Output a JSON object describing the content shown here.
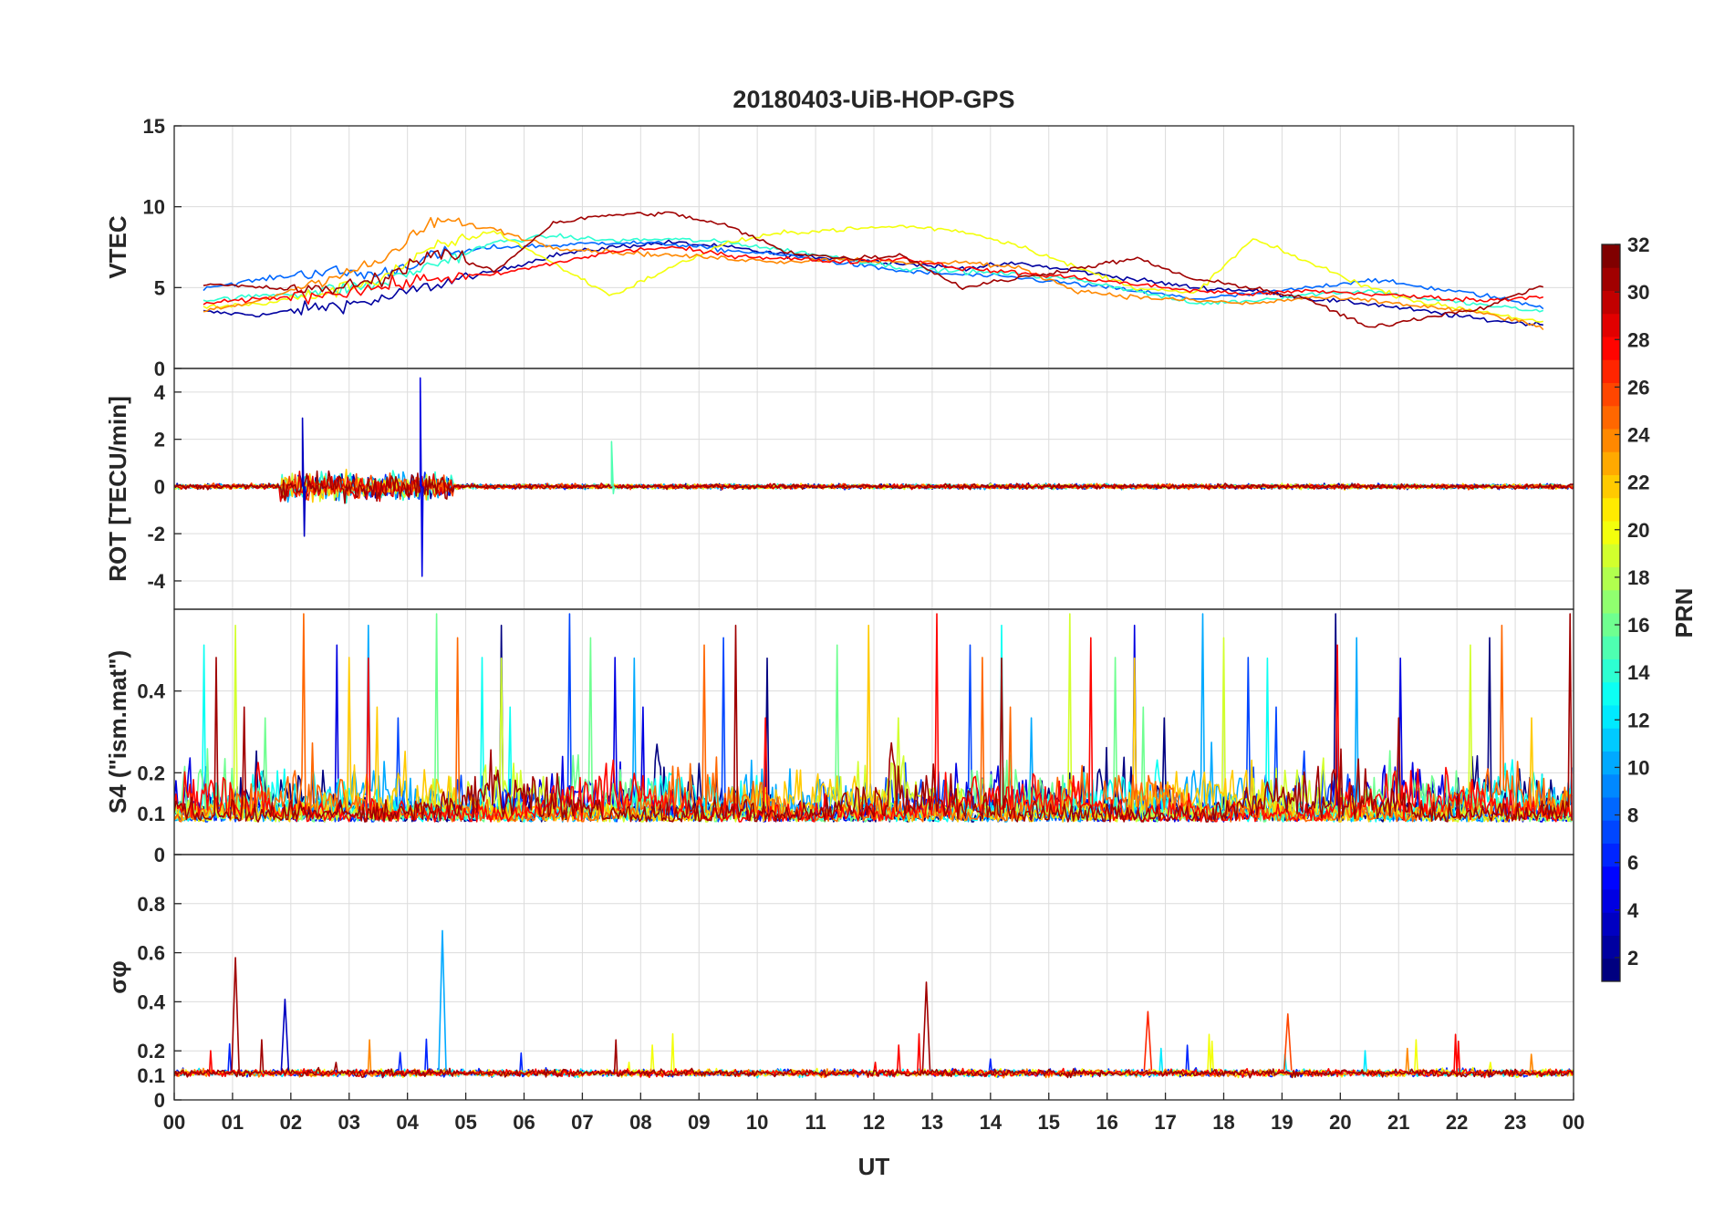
{
  "chart_data": {
    "type": "line",
    "title": "20180403-UiB-HOP-GPS",
    "xlabel": "UT",
    "x_ticks": [
      "00",
      "01",
      "02",
      "03",
      "04",
      "05",
      "06",
      "07",
      "08",
      "09",
      "10",
      "11",
      "12",
      "13",
      "14",
      "15",
      "16",
      "17",
      "18",
      "19",
      "20",
      "21",
      "22",
      "23",
      "00"
    ],
    "xlim_hours": [
      0,
      24
    ],
    "colorbar": {
      "label": "PRN",
      "range": [
        1,
        32
      ],
      "ticks": [
        "2",
        "4",
        "6",
        "8",
        "10",
        "12",
        "14",
        "16",
        "18",
        "20",
        "22",
        "24",
        "26",
        "28",
        "30",
        "32"
      ],
      "colormap": "jet"
    },
    "panels": [
      {
        "ylabel": "VTEC",
        "ylim": [
          0,
          15
        ],
        "yticks": [
          "0",
          "5",
          "10",
          "15"
        ],
        "series": [
          {
            "name": "PRN 2",
            "hours": [
              0.5,
              1.5,
              2.5,
              3.5,
              4.5,
              5.5,
              6.5,
              7.5,
              8.5,
              9.5,
              10.5,
              11.5,
              12.5,
              13.5,
              14.5,
              15.5,
              16.5,
              17.5,
              18.5,
              19.5,
              20.5,
              21.5,
              22.5,
              23.5
            ],
            "values": [
              3.5,
              3.3,
              3.8,
              4.2,
              5.2,
              6.0,
              7.0,
              7.5,
              7.8,
              7.5,
              7.0,
              6.8,
              6.5,
              6.2,
              6.5,
              6.0,
              5.5,
              5.0,
              4.8,
              4.3,
              4.0,
              3.5,
              3.0,
              2.7
            ]
          },
          {
            "name": "PRN 8",
            "hours": [
              0.5,
              1.5,
              2.5,
              3.5,
              4.5,
              5.5,
              6.5,
              7.5,
              8.5,
              9.5,
              10.5,
              11.5,
              12.5,
              13.5,
              14.5,
              15.5,
              16.5,
              17.5,
              18.5,
              19.5,
              20.5,
              21.5,
              22.5,
              23.5
            ],
            "values": [
              5.0,
              5.5,
              6.0,
              5.8,
              7.0,
              7.5,
              7.6,
              7.8,
              7.7,
              7.3,
              7.0,
              6.5,
              6.0,
              5.8,
              5.6,
              5.2,
              4.8,
              4.3,
              4.6,
              5.0,
              5.5,
              5.0,
              4.5,
              3.8
            ]
          },
          {
            "name": "PRN 14",
            "hours": [
              0.5,
              1.5,
              2.5,
              3.5,
              4.5,
              5.5,
              6.5,
              7.5,
              8.5,
              9.5,
              10.5,
              11.5,
              12.5,
              13.5,
              14.5,
              15.5,
              16.5,
              17.5,
              18.5,
              19.5,
              20.5,
              21.5,
              22.5,
              23.5
            ],
            "values": [
              4.2,
              4.5,
              4.8,
              5.2,
              6.5,
              7.8,
              8.2,
              7.9,
              8.0,
              7.8,
              7.3,
              6.8,
              6.2,
              6.0,
              5.8,
              5.5,
              4.8,
              4.0,
              4.2,
              4.6,
              4.8,
              4.3,
              3.9,
              3.5
            ]
          },
          {
            "name": "PRN 20",
            "hours": [
              0.5,
              1.5,
              2.5,
              3.5,
              4.5,
              5.5,
              6.5,
              7.5,
              8.5,
              9.5,
              10.5,
              11.5,
              12.5,
              13.5,
              14.5,
              15.5,
              16.5,
              17.5,
              18.5,
              19.5,
              20.5,
              21.5,
              22.5,
              23.5
            ],
            "values": [
              3.8,
              4.0,
              4.6,
              5.5,
              7.5,
              8.5,
              6.5,
              4.5,
              6.2,
              7.8,
              8.4,
              8.6,
              8.8,
              8.5,
              7.6,
              6.2,
              5.0,
              4.6,
              8.0,
              6.5,
              5.0,
              4.0,
              3.5,
              2.8
            ]
          },
          {
            "name": "PRN 24",
            "hours": [
              0.5,
              1.5,
              2.5,
              3.5,
              4.5,
              5.5,
              6.5,
              7.5,
              8.5,
              9.5,
              10.5,
              11.5,
              12.5,
              13.5,
              14.5,
              15.5,
              16.5,
              17.5,
              18.5,
              19.5,
              20.5,
              21.5,
              22.5,
              23.5
            ],
            "values": [
              3.5,
              4.2,
              5.5,
              6.5,
              9.2,
              8.6,
              7.5,
              7.2,
              7.0,
              6.8,
              6.6,
              6.8,
              6.5,
              6.6,
              6.2,
              4.8,
              4.4,
              4.2,
              4.0,
              4.4,
              4.2,
              3.8,
              3.4,
              2.5
            ]
          },
          {
            "name": "PRN 28",
            "hours": [
              0.5,
              1.5,
              2.5,
              3.5,
              4.5,
              5.5,
              6.5,
              7.5,
              8.5,
              9.5,
              10.5,
              11.5,
              12.5,
              13.5,
              14.5,
              15.5,
              16.5,
              17.5,
              18.5,
              19.5,
              20.5,
              21.5,
              22.5,
              23.5
            ],
            "values": [
              4.0,
              4.3,
              4.6,
              5.0,
              5.6,
              5.8,
              6.5,
              7.2,
              7.5,
              7.0,
              6.8,
              6.6,
              6.8,
              6.2,
              5.9,
              5.6,
              5.2,
              4.8,
              4.6,
              4.8,
              4.6,
              4.4,
              4.2,
              4.5
            ]
          },
          {
            "name": "PRN 31",
            "hours": [
              0.5,
              1.5,
              2.5,
              3.5,
              4.5,
              5.5,
              6.5,
              7.5,
              8.5,
              9.5,
              10.5,
              11.5,
              12.5,
              13.5,
              14.5,
              15.5,
              16.5,
              17.5,
              18.5,
              19.5,
              20.5,
              21.5,
              22.5,
              23.5
            ],
            "values": [
              5.2,
              5.0,
              4.8,
              5.5,
              7.2,
              6.0,
              9.0,
              9.5,
              9.6,
              8.8,
              7.2,
              6.8,
              7.0,
              5.0,
              5.6,
              6.2,
              6.8,
              5.5,
              5.0,
              4.2,
              2.5,
              3.2,
              3.8,
              5.2
            ]
          }
        ]
      },
      {
        "ylabel": "ROT [TECU/min]",
        "ylim": [
          -5.2,
          5
        ],
        "yticks": [
          "-4",
          "-2",
          "0",
          "2",
          "4"
        ],
        "peaks": [
          {
            "name": "PRN 4",
            "hour": 4.22,
            "max": 4.6,
            "min": -3.8
          },
          {
            "name": "PRN 3",
            "hour": 2.2,
            "max": 2.9,
            "min": -2.1
          },
          {
            "name": "PRN 15",
            "hour": 7.5,
            "max": 1.9,
            "min": -0.3
          }
        ]
      },
      {
        "ylabel": "S4 (\"ism.mat\")",
        "ylim": [
          0,
          0.6
        ],
        "yticks": [
          "0",
          "0.1",
          "0.2",
          "0.4"
        ],
        "typical_level": 0.08,
        "peak_level": 0.6
      },
      {
        "ylabel": "σφ",
        "ylim": [
          0,
          1
        ],
        "yticks": [
          "0",
          "0.1",
          "0.2",
          "0.4",
          "0.6",
          "0.8"
        ],
        "peaks": [
          {
            "name": "PRN 31",
            "hour": 1.05,
            "value": 0.58
          },
          {
            "name": "PRN 10",
            "hour": 4.6,
            "value": 0.69
          },
          {
            "name": "PRN 31",
            "hour": 12.9,
            "value": 0.48
          },
          {
            "name": "PRN 3",
            "hour": 1.9,
            "value": 0.41
          },
          {
            "name": "PRN 27",
            "hour": 16.7,
            "value": 0.36
          },
          {
            "name": "PRN 26",
            "hour": 19.1,
            "value": 0.35
          }
        ]
      }
    ]
  }
}
